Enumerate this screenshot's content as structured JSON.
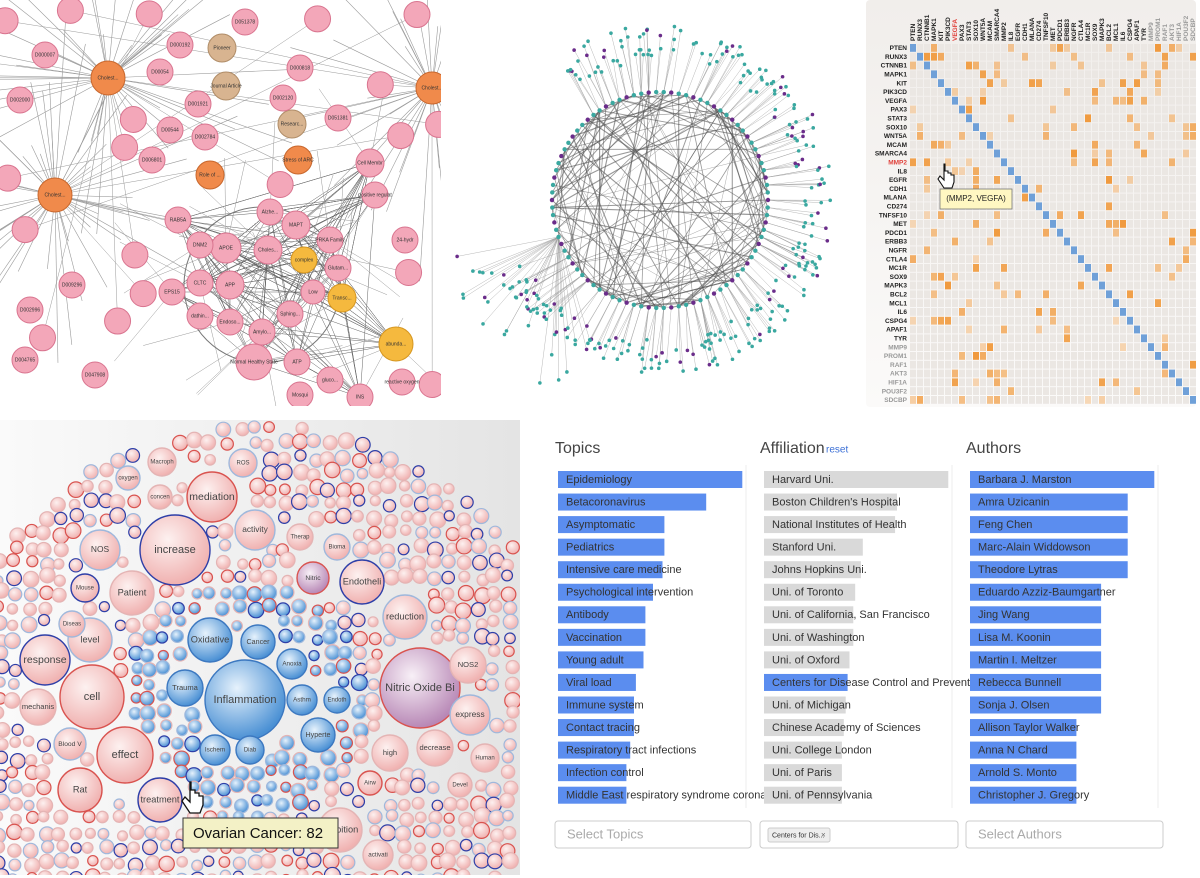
{
  "network_panel": {
    "nodes": [
      "Cholest...",
      "Cholest...",
      "Cholest...",
      "Pioneer",
      "Journal Article",
      "Researc...",
      "Stress of ARC",
      "Role of ...",
      "APOE",
      "APP",
      "MAPT",
      "DNM2",
      "CLTC",
      "Choles...",
      "PRKA Family",
      "complex",
      "Alzhe...",
      "Glutam...",
      "Transc...",
      "abunda...",
      "Endoso...",
      "Amylo...",
      "Normal Healthy State",
      "ATP",
      "Low",
      "Sphing...",
      "INS",
      "Cell Membr",
      "positive regulat",
      "RAB5A",
      "EPS15",
      "D051378",
      "D000192",
      "D00054",
      "D001921",
      "D002784",
      "D002120",
      "D000818",
      "D00544",
      "D051381",
      "D006801",
      "D000007",
      "D002000",
      "D009296",
      "D002996",
      "D004765",
      "D047908",
      "24-hydr",
      "Mosqui",
      "gluco...",
      "reactive oxygen",
      "dathin..."
    ]
  },
  "heatmap_panel": {
    "genes": [
      "PTEN",
      "RUNX3",
      "CTNNB1",
      "MAPK1",
      "KIT",
      "PIK3CD",
      "VEGFA",
      "PAX3",
      "STAT3",
      "SOX10",
      "WNT5A",
      "MCAM",
      "SMARCA4",
      "MMP2",
      "IL8",
      "EGFR",
      "CDH1",
      "MLANA",
      "CD274",
      "TNFSF10",
      "MET",
      "PDCD1",
      "ERBB3",
      "NGFR",
      "CTLA4",
      "MC1R",
      "SOX9",
      "MAPK3",
      "BCL2",
      "MCL1",
      "IL6",
      "CSPG4",
      "APAF1",
      "TYR",
      "MMP9",
      "PROM1",
      "RAF1",
      "AKT3",
      "HIF1A",
      "POU3F2",
      "SDCBP"
    ],
    "tooltip": "(MMP2, VEGFA)"
  },
  "bubble_panel": {
    "bubbles": [
      "Inflammation",
      "Oxidative",
      "Cancer",
      "Trauma",
      "Asthm",
      "Hyperte",
      "Diab",
      "Ischem",
      "Anoxia",
      "Endoth",
      "Nitric",
      "Nitric Oxide Bi",
      "Endotheli",
      "increase",
      "cell",
      "effect",
      "treatment",
      "mediation",
      "activity",
      "Patient",
      "NOS",
      "level",
      "response",
      "mechanis",
      "Rat",
      "Blood V",
      "reduction",
      "high",
      "decrease",
      "express",
      "NOS2",
      "inhibition",
      "Human",
      "Macroph",
      "oxygen",
      "concen",
      "ROS",
      "Mouse",
      "Diseas",
      "activati",
      "Therap",
      "Bioma",
      "Airw",
      "Devel"
    ],
    "tooltip": "Ovarian Cancer: 82"
  },
  "filter_panel": {
    "topics": {
      "title": "Topics",
      "xlim": [
        0,
        100
      ],
      "color": "#5b8def",
      "categories": [
        "Epidemiology",
        "Betacoronavirus",
        "Asymptomatic",
        "Pediatrics",
        "Intensive care medicine",
        "Psychological intervention",
        "Antibody",
        "Vaccination",
        "Young adult",
        "Viral load",
        "Immune system",
        "Contact tracing",
        "Respiratory tract infections",
        "Infection control",
        "Middle East respiratory syndrome coronavi"
      ],
      "values": [
        97,
        78,
        56,
        56,
        55,
        50,
        46,
        46,
        45,
        41,
        40,
        40,
        38,
        36,
        36
      ],
      "placeholder": "Select Topics"
    },
    "affiliation": {
      "title": "Affiliation",
      "reset": "reset",
      "xlim": [
        0,
        100
      ],
      "color": "#d9d9d9",
      "selected_color": "#5b8def",
      "selected_index": 9,
      "categories": [
        "Harvard Uni.",
        "Boston Children's Hospital",
        "National Institutes of Health",
        "Stanford Uni.",
        "Johns Hopkins Uni.",
        "Uni. of Toronto",
        "Uni. of California, San Francisco",
        "Uni. of Washington",
        "Uni. of Oxford",
        "Centers for Disease Control and Prevention",
        "Uni. of Michigan",
        "Chinese Academy of Sciences",
        "Uni. College London",
        "Uni. of Paris",
        "Uni. of Pennsylvania"
      ],
      "values": [
        97,
        70,
        69,
        52,
        51,
        48,
        47,
        47,
        45,
        44,
        43,
        42,
        41,
        41,
        41
      ],
      "chip": "Centers for Dis...",
      "chip_remove": "×"
    },
    "authors": {
      "title": "Authors",
      "xlim": [
        0,
        100
      ],
      "color": "#5b8def",
      "categories": [
        "Barbara J. Marston",
        "Amra Uzicanin",
        "Feng Chen",
        "Marc-Alain Widdowson",
        "Theodore Lytras",
        "Eduardo Azziz-Baumgartner",
        "Jing Wang",
        "Lisa M. Koonin",
        "Martin I. Meltzer",
        "Rebecca Bunnell",
        "Sonja J. Olsen",
        "Allison Taylor Walker",
        "Anna N Chard",
        "Arnold S. Monto",
        "Christopher J. Gregory"
      ],
      "values": [
        97,
        83,
        83,
        83,
        83,
        69,
        69,
        69,
        69,
        69,
        69,
        56,
        56,
        56,
        56
      ],
      "placeholder": "Select Authors"
    }
  }
}
